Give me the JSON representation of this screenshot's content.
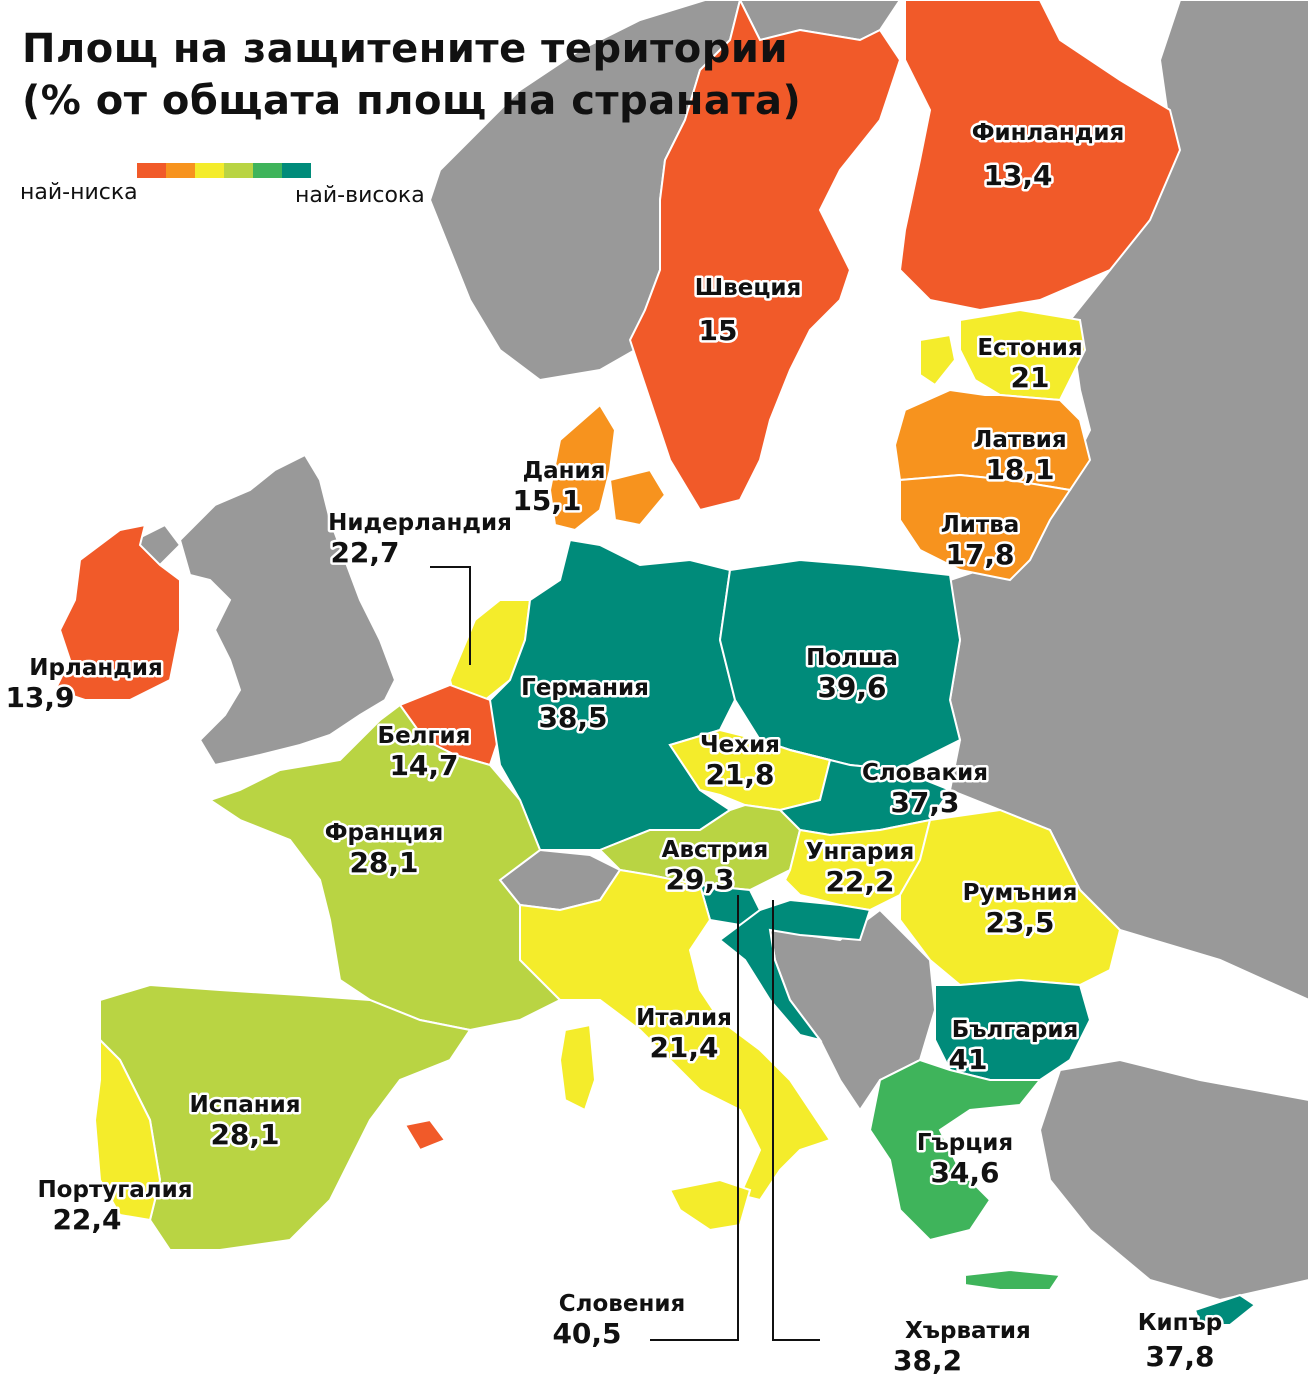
{
  "title": {
    "line1": "Площ на защитените територии",
    "line2": "(% от общата площ на страната)"
  },
  "legend": {
    "low_label": "най-ниска",
    "high_label": "най-висока",
    "colors": [
      "#f15a29",
      "#f7931e",
      "#f4ec2b",
      "#b9d443",
      "#3fb45b",
      "#008b7a"
    ]
  },
  "colors": {
    "sea": "#ffffff",
    "non_eu": "#999999",
    "border": "#ffffff"
  },
  "countries": [
    {
      "name": "Финландия",
      "value": "13,4",
      "color": "#f15a29"
    },
    {
      "name": "Швеция",
      "value": "15",
      "color": "#f15a29"
    },
    {
      "name": "Естония",
      "value": "21",
      "color": "#f4ec2b"
    },
    {
      "name": "Латвия",
      "value": "18,1",
      "color": "#f7931e"
    },
    {
      "name": "Литва",
      "value": "17,8",
      "color": "#f7931e"
    },
    {
      "name": "Дания",
      "value": "15,1",
      "color": "#f7931e"
    },
    {
      "name": "Нидерландия",
      "value": "22,7",
      "color": "#f4ec2b"
    },
    {
      "name": "Ирландия",
      "value": "13,9",
      "color": "#f15a29"
    },
    {
      "name": "Германия",
      "value": "38,5",
      "color": "#008b7a"
    },
    {
      "name": "Полша",
      "value": "39,6",
      "color": "#008b7a"
    },
    {
      "name": "Белгия",
      "value": "14,7",
      "color": "#f15a29"
    },
    {
      "name": "Чехия",
      "value": "21,8",
      "color": "#f4ec2b"
    },
    {
      "name": "Словакия",
      "value": "37,3",
      "color": "#008b7a"
    },
    {
      "name": "Франция",
      "value": "28,1",
      "color": "#b9d443"
    },
    {
      "name": "Австрия",
      "value": "29,3",
      "color": "#b9d443"
    },
    {
      "name": "Унгария",
      "value": "22,2",
      "color": "#f4ec2b"
    },
    {
      "name": "Румъния",
      "value": "23,5",
      "color": "#f4ec2b"
    },
    {
      "name": "Италия",
      "value": "21,4",
      "color": "#f4ec2b"
    },
    {
      "name": "България",
      "value": "41",
      "color": "#008b7a"
    },
    {
      "name": "Испания",
      "value": "28,1",
      "color": "#b9d443"
    },
    {
      "name": "Гърция",
      "value": "34,6",
      "color": "#3fb45b"
    },
    {
      "name": "Португалия",
      "value": "22,4",
      "color": "#f4ec2b"
    },
    {
      "name": "Словения",
      "value": "40,5",
      "color": "#008b7a"
    },
    {
      "name": "Хърватия",
      "value": "38,2",
      "color": "#008b7a"
    },
    {
      "name": "Кипър",
      "value": "37,8",
      "color": "#008b7a"
    }
  ]
}
